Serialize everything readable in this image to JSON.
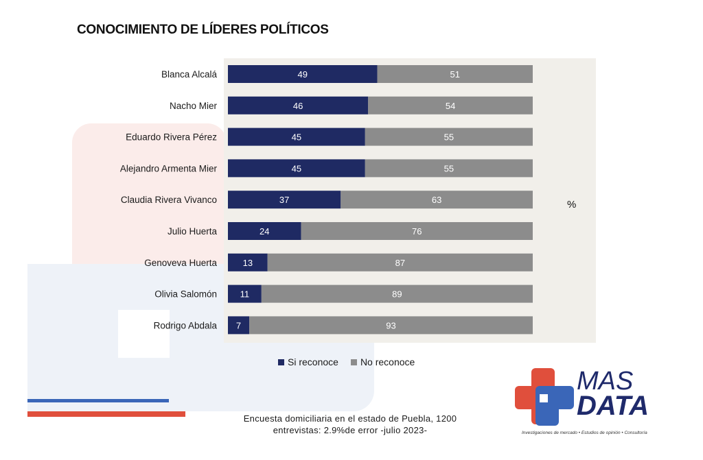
{
  "title": "CONOCIMIENTO DE LÍDERES POLÍTICOS",
  "unit_label": "%",
  "colors": {
    "reconoce": "#1f2a63",
    "no_reconoce": "#8c8c8c",
    "brand_red": "#e04f3c",
    "brand_blue": "#3a66b8"
  },
  "chart_data": {
    "type": "bar",
    "orientation": "horizontal",
    "stacked": true,
    "title": "CONOCIMIENTO DE LÍDERES POLÍTICOS",
    "categories": [
      "Blanca Alcalá",
      "Nacho Mier",
      "Eduardo Rivera Pérez",
      "Alejandro Armenta Mier",
      "Claudia Rivera Vivanco",
      "Julio Huerta",
      "Genoveva Huerta",
      "Olivia Salomón",
      "Rodrigo Abdala"
    ],
    "series": [
      {
        "name": "Si reconoce",
        "values": [
          49,
          46,
          45,
          45,
          37,
          24,
          13,
          11,
          7
        ]
      },
      {
        "name": "No reconoce",
        "values": [
          51,
          54,
          55,
          55,
          63,
          76,
          87,
          89,
          93
        ]
      }
    ],
    "xlim": [
      0,
      100
    ],
    "ylabel": "%",
    "legend": "bottom",
    "grid": false
  },
  "legend": {
    "series1": "Si reconoce",
    "series2": "No reconoce"
  },
  "footnote": {
    "line1": "Encuesta domiciliaria en el estado de Puebla, 1200",
    "line2": "entrevistas: 2.9%de error -julio 2023-"
  },
  "logo": {
    "line1": "MAS",
    "line2": "DATA",
    "tagline": "Investigaciones de mercado • Estudios de opinión • Consultoría"
  }
}
